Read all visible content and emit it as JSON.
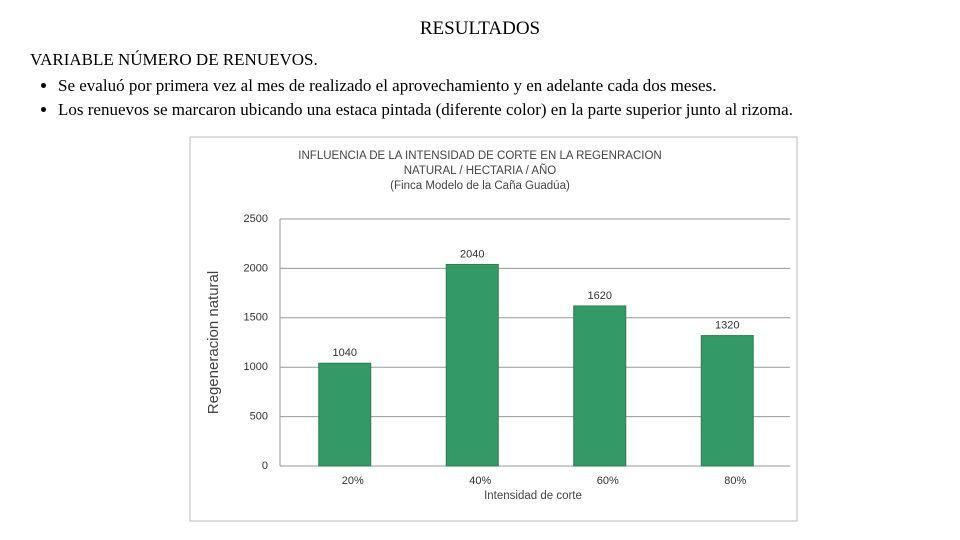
{
  "header": {
    "title": "RESULTADOS",
    "subtitle": "VARIABLE NÚMERO DE RENUEVOS."
  },
  "bullets": [
    "Se evaluó por primera vez al mes de realizado el aprovechamiento y en adelante cada dos meses.",
    "Los renuevos se marcaron ubicando una estaca pintada (diferente color) en la parte superior junto al rizoma."
  ],
  "chart_data": {
    "type": "bar",
    "title": [
      "INFLUENCIA DE LA INTENSIDAD DE CORTE EN LA REGENRACION",
      "NATURAL / HECTARIA / AÑO"
    ],
    "subtitle": "(Finca Modelo de la Caña Guadúa)",
    "x_label": "Intensidad de corte",
    "y_label": "Regeneracion natural",
    "categories": [
      "20%",
      "40%",
      "60%",
      "80%"
    ],
    "values": [
      1040,
      2040,
      1620,
      1320
    ],
    "color": "#339966",
    "ylim": [
      0,
      2500
    ],
    "yticks": [
      0,
      500,
      1000,
      1500,
      2000,
      2500
    ],
    "grid": true
  }
}
